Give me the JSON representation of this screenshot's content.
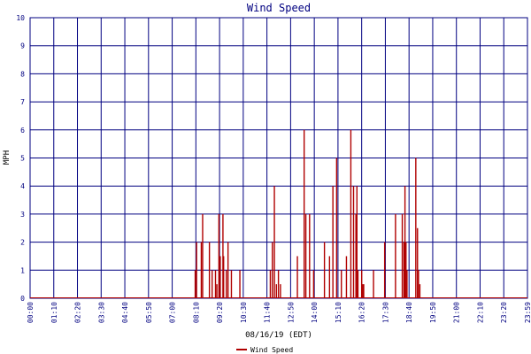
{
  "chart_data": {
    "type": "bar",
    "title": "Wind Speed",
    "xlabel": "08/16/19 (EDT)",
    "ylabel": "MPH",
    "ylim": [
      0,
      10
    ],
    "yticks": [
      "0",
      "1",
      "2",
      "3",
      "4",
      "5",
      "6",
      "7",
      "8",
      "9",
      "10"
    ],
    "xticks": [
      "00:00",
      "01:10",
      "02:20",
      "03:30",
      "04:40",
      "05:50",
      "07:00",
      "08:10",
      "09:20",
      "10:30",
      "11:40",
      "12:50",
      "14:00",
      "15:10",
      "16:20",
      "17:30",
      "18:40",
      "19:50",
      "21:00",
      "22:10",
      "23:20",
      "23:59"
    ],
    "x_unit": "minutes since 00:00",
    "grid": true,
    "legend": "bottom",
    "series": [
      {
        "name": "Wind Speed",
        "color": "#b00000",
        "x": [
          488,
          492,
          506,
          510,
          530,
          538,
          548,
          552,
          558,
          562,
          570,
          572,
          580,
          585,
          595,
          620,
          710,
          716,
          722,
          728,
          734,
          740,
          790,
          810,
          815,
          826,
          838,
          870,
          885,
          895,
          906,
          920,
          935,
          948,
          956,
          963,
          966,
          969,
          980,
          983,
          986,
          1015,
          1048,
          1080,
          1100,
          1105,
          1108,
          1111,
          1114,
          1140,
          1145,
          1148,
          1152
        ],
        "values": [
          1,
          2,
          2,
          3,
          2,
          1,
          1,
          0.5,
          3,
          1.5,
          3,
          1.5,
          1,
          2,
          1,
          1,
          1,
          2,
          4,
          0.5,
          1,
          0.5,
          1.5,
          6,
          3,
          3,
          1,
          2,
          1.5,
          4,
          5,
          1,
          1.5,
          6,
          4,
          3,
          4,
          1,
          1,
          0.5,
          0.5,
          1,
          2,
          3,
          3,
          2,
          4,
          2,
          1,
          5,
          2.5,
          1,
          0.5
        ]
      }
    ]
  }
}
